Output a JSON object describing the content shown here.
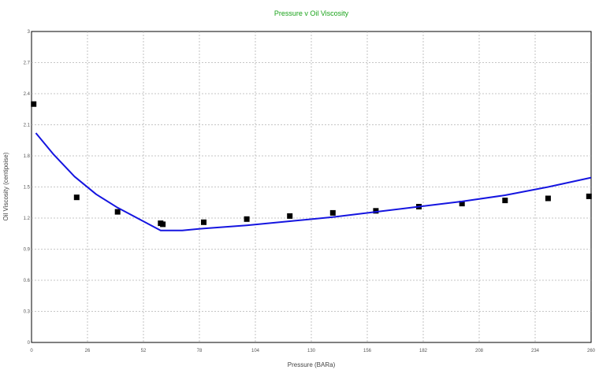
{
  "chart_data": {
    "type": "scatter",
    "title": "Pressure v Oil Viscosity",
    "xlabel": "Pressure  (BARa)",
    "ylabel": "Oil Viscosity  (centipoise)",
    "xlim": [
      0,
      260
    ],
    "ylim": [
      0,
      3
    ],
    "x_ticks": [
      "0",
      "26",
      "52",
      "78",
      "104",
      "130",
      "156",
      "182",
      "208",
      "234",
      "260"
    ],
    "y_ticks": [
      "0",
      "0.3",
      "0.6",
      "0.9",
      "1.2",
      "1.5",
      "1.8",
      "2.1",
      "2.4",
      "2.7",
      "3"
    ],
    "grid": true,
    "series": [
      {
        "kind": "markers",
        "color": "#000000",
        "points": [
          [
            1,
            2.3
          ],
          [
            21,
            1.4
          ],
          [
            40,
            1.26
          ],
          [
            60,
            1.15
          ],
          [
            61,
            1.14
          ],
          [
            80,
            1.16
          ],
          [
            100,
            1.19
          ],
          [
            120,
            1.22
          ],
          [
            140,
            1.25
          ],
          [
            160,
            1.27
          ],
          [
            180,
            1.31
          ],
          [
            200,
            1.34
          ],
          [
            220,
            1.37
          ],
          [
            240,
            1.39
          ],
          [
            259,
            1.41
          ]
        ]
      },
      {
        "kind": "line",
        "color": "#1515e0",
        "points": [
          [
            2,
            2.02
          ],
          [
            10,
            1.82
          ],
          [
            20,
            1.6
          ],
          [
            30,
            1.43
          ],
          [
            40,
            1.3
          ],
          [
            50,
            1.19
          ],
          [
            60,
            1.08
          ],
          [
            70,
            1.08
          ],
          [
            80,
            1.1
          ],
          [
            100,
            1.13
          ],
          [
            120,
            1.17
          ],
          [
            140,
            1.21
          ],
          [
            160,
            1.26
          ],
          [
            180,
            1.31
          ],
          [
            200,
            1.36
          ],
          [
            220,
            1.42
          ],
          [
            240,
            1.5
          ],
          [
            260,
            1.59
          ]
        ]
      }
    ]
  }
}
